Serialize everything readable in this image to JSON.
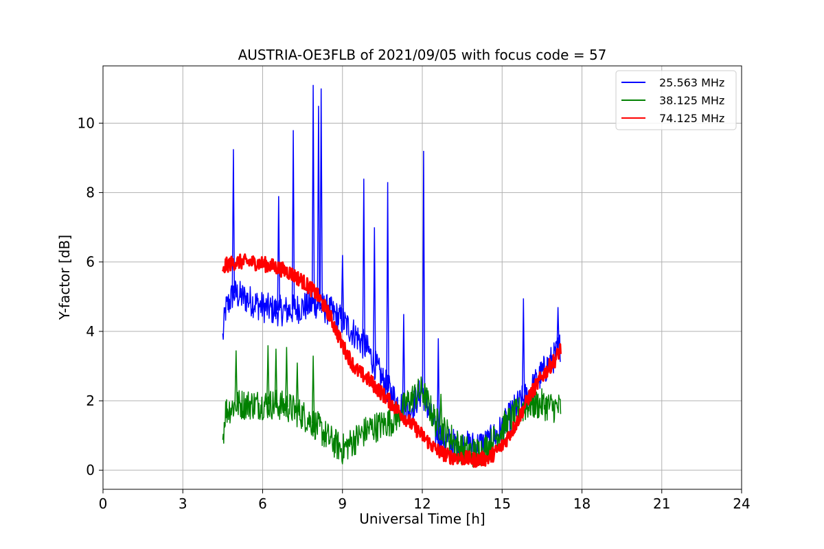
{
  "chart_data": {
    "type": "line",
    "title": "AUSTRIA-OE3FLB of 2021/09/05 with focus code = 57",
    "xlabel": "Universal Time [h]",
    "ylabel": "Y-factor [dB]",
    "xlim": [
      0,
      24
    ],
    "ylim": [
      -0.55,
      11.65
    ],
    "xticks": [
      0,
      3,
      6,
      9,
      12,
      15,
      18,
      21,
      24
    ],
    "yticks": [
      0,
      2,
      4,
      6,
      8,
      10
    ],
    "grid": true,
    "legend_position": "top-right",
    "series": [
      {
        "name": "25.563 MHz",
        "color": "#0000ff",
        "x": [
          4.5,
          4.6,
          4.9,
          5.5,
          6.0,
          6.5,
          7.0,
          7.5,
          8.0,
          8.5,
          9.0,
          9.5,
          10.0,
          10.5,
          11.0,
          11.5,
          12.0,
          12.5,
          13.0,
          13.5,
          14.0,
          14.5,
          15.0,
          15.5,
          16.0,
          16.5,
          17.0,
          17.2
        ],
        "values": [
          3.8,
          4.6,
          5.1,
          4.9,
          4.7,
          4.6,
          4.6,
          4.7,
          4.8,
          4.6,
          4.3,
          3.9,
          3.4,
          2.6,
          2.0,
          1.7,
          2.3,
          1.1,
          0.8,
          0.7,
          0.7,
          0.8,
          1.2,
          1.8,
          2.2,
          2.8,
          3.3,
          3.6
        ],
        "spikes": [
          {
            "x": 4.9,
            "y": 9.25
          },
          {
            "x": 6.6,
            "y": 7.9
          },
          {
            "x": 7.15,
            "y": 9.8
          },
          {
            "x": 7.9,
            "y": 11.1
          },
          {
            "x": 8.1,
            "y": 10.5
          },
          {
            "x": 8.2,
            "y": 11.0
          },
          {
            "x": 9.0,
            "y": 6.2
          },
          {
            "x": 9.8,
            "y": 8.4
          },
          {
            "x": 10.2,
            "y": 7.0
          },
          {
            "x": 10.7,
            "y": 8.3
          },
          {
            "x": 11.3,
            "y": 4.5
          },
          {
            "x": 12.05,
            "y": 9.2
          },
          {
            "x": 12.6,
            "y": 3.8
          },
          {
            "x": 15.8,
            "y": 4.95
          },
          {
            "x": 17.1,
            "y": 4.7
          }
        ]
      },
      {
        "name": "38.125 MHz",
        "color": "#008000",
        "x": [
          4.5,
          4.6,
          5.0,
          5.5,
          6.0,
          6.5,
          7.0,
          7.5,
          8.0,
          8.5,
          9.0,
          9.5,
          10.0,
          10.5,
          11.0,
          11.5,
          12.0,
          12.5,
          13.0,
          13.5,
          14.0,
          14.5,
          15.0,
          15.5,
          16.0,
          16.5,
          17.0,
          17.2
        ],
        "values": [
          0.9,
          1.7,
          1.9,
          1.9,
          1.9,
          1.9,
          1.8,
          1.6,
          1.3,
          0.9,
          0.6,
          0.9,
          1.2,
          1.3,
          1.5,
          2.0,
          2.3,
          1.4,
          1.0,
          0.6,
          0.5,
          0.7,
          1.2,
          1.6,
          1.9,
          1.9,
          1.8,
          1.8
        ],
        "spikes": [
          {
            "x": 5.0,
            "y": 3.45
          },
          {
            "x": 6.2,
            "y": 3.6
          },
          {
            "x": 6.5,
            "y": 3.5
          },
          {
            "x": 6.9,
            "y": 3.55
          },
          {
            "x": 7.3,
            "y": 3.1
          },
          {
            "x": 7.9,
            "y": 3.3
          },
          {
            "x": 12.7,
            "y": 2.2
          }
        ]
      },
      {
        "name": "74.125 MHz",
        "color": "#ff0000",
        "x": [
          4.5,
          4.6,
          5.0,
          5.5,
          6.0,
          6.5,
          7.0,
          7.5,
          8.0,
          8.5,
          9.0,
          9.5,
          10.0,
          10.5,
          11.0,
          11.5,
          12.0,
          12.5,
          13.0,
          13.5,
          14.0,
          14.5,
          15.0,
          15.5,
          16.0,
          16.5,
          17.0,
          17.2
        ],
        "values": [
          5.6,
          5.9,
          6.0,
          6.0,
          5.95,
          5.85,
          5.7,
          5.45,
          5.1,
          4.5,
          3.6,
          2.9,
          2.6,
          2.2,
          1.8,
          1.4,
          1.0,
          0.6,
          0.4,
          0.35,
          0.3,
          0.35,
          0.7,
          1.3,
          2.1,
          2.7,
          3.2,
          3.5
        ]
      }
    ]
  }
}
